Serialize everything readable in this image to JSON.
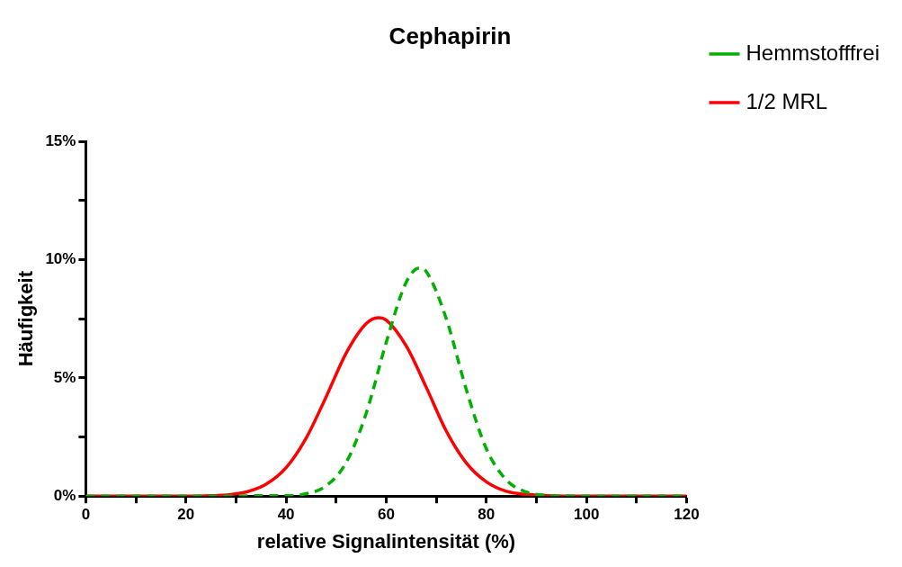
{
  "chart_data": {
    "type": "line",
    "title": "Cephapirin",
    "xlabel": "relative Signalintensität (%)",
    "ylabel": "Häufigkeit",
    "xlim": [
      0,
      120
    ],
    "ylim": [
      0,
      15
    ],
    "xticks": [
      0,
      {
        "value": 10,
        "label": null
      },
      20,
      {
        "value": 30,
        "label": null
      },
      40,
      {
        "value": 50,
        "label": null
      },
      60,
      {
        "value": 70,
        "label": null
      },
      80,
      {
        "value": 90,
        "label": null
      },
      100,
      {
        "value": 110,
        "label": null
      },
      120
    ],
    "yticks": [
      {
        "value": 0,
        "label": "0%"
      },
      {
        "value": 2.5,
        "label": null
      },
      {
        "value": 5,
        "label": "5%"
      },
      {
        "value": 7.5,
        "label": null
      },
      {
        "value": 10,
        "label": "10%"
      },
      {
        "value": 12.5,
        "label": null
      },
      {
        "value": 15,
        "label": "15%"
      }
    ],
    "grid": false,
    "legend": "top right",
    "marker": "none",
    "series": [
      {
        "name": "Hemmstofffrei",
        "color": "#00b000",
        "line_style": "dashed",
        "x": [
          0,
          30,
          36,
          40,
          44,
          48,
          52,
          56,
          60,
          64,
          66.7,
          68,
          72,
          76,
          80,
          84,
          88,
          92,
          100,
          120
        ],
        "values": [
          0,
          0,
          0.02,
          0.02,
          0.1,
          0.43,
          1.42,
          3.5,
          6.5,
          9.05,
          9.65,
          9.5,
          7.5,
          4.5,
          2.0,
          0.68,
          0.17,
          0.03,
          0,
          0
        ]
      },
      {
        "name": "1/2 MRL",
        "color": "#ff0000",
        "line_style": "solid",
        "x": [
          0,
          20,
          24,
          28,
          32,
          36,
          40,
          44,
          48,
          52,
          56,
          58.4,
          60,
          64,
          68,
          72,
          76,
          80,
          84,
          88,
          92,
          100,
          120
        ],
        "values": [
          0,
          0,
          0.01,
          0.05,
          0.17,
          0.5,
          1.2,
          2.45,
          4.2,
          6.05,
          7.3,
          7.55,
          7.45,
          6.35,
          4.6,
          2.75,
          1.4,
          0.6,
          0.2,
          0.07,
          0.02,
          0,
          0
        ]
      }
    ]
  }
}
